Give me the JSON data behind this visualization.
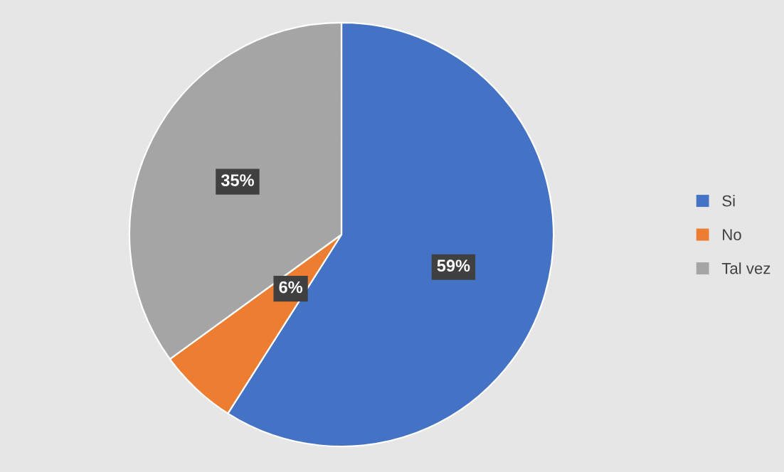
{
  "chart_data": {
    "type": "pie",
    "categories": [
      "Si",
      "No",
      "Tal vez"
    ],
    "values": [
      59,
      6,
      35
    ],
    "colors": [
      "#4472c4",
      "#ed7d31",
      "#a5a5a5"
    ],
    "value_labels": [
      "59%",
      "6%",
      "35%"
    ],
    "legend": "right"
  }
}
